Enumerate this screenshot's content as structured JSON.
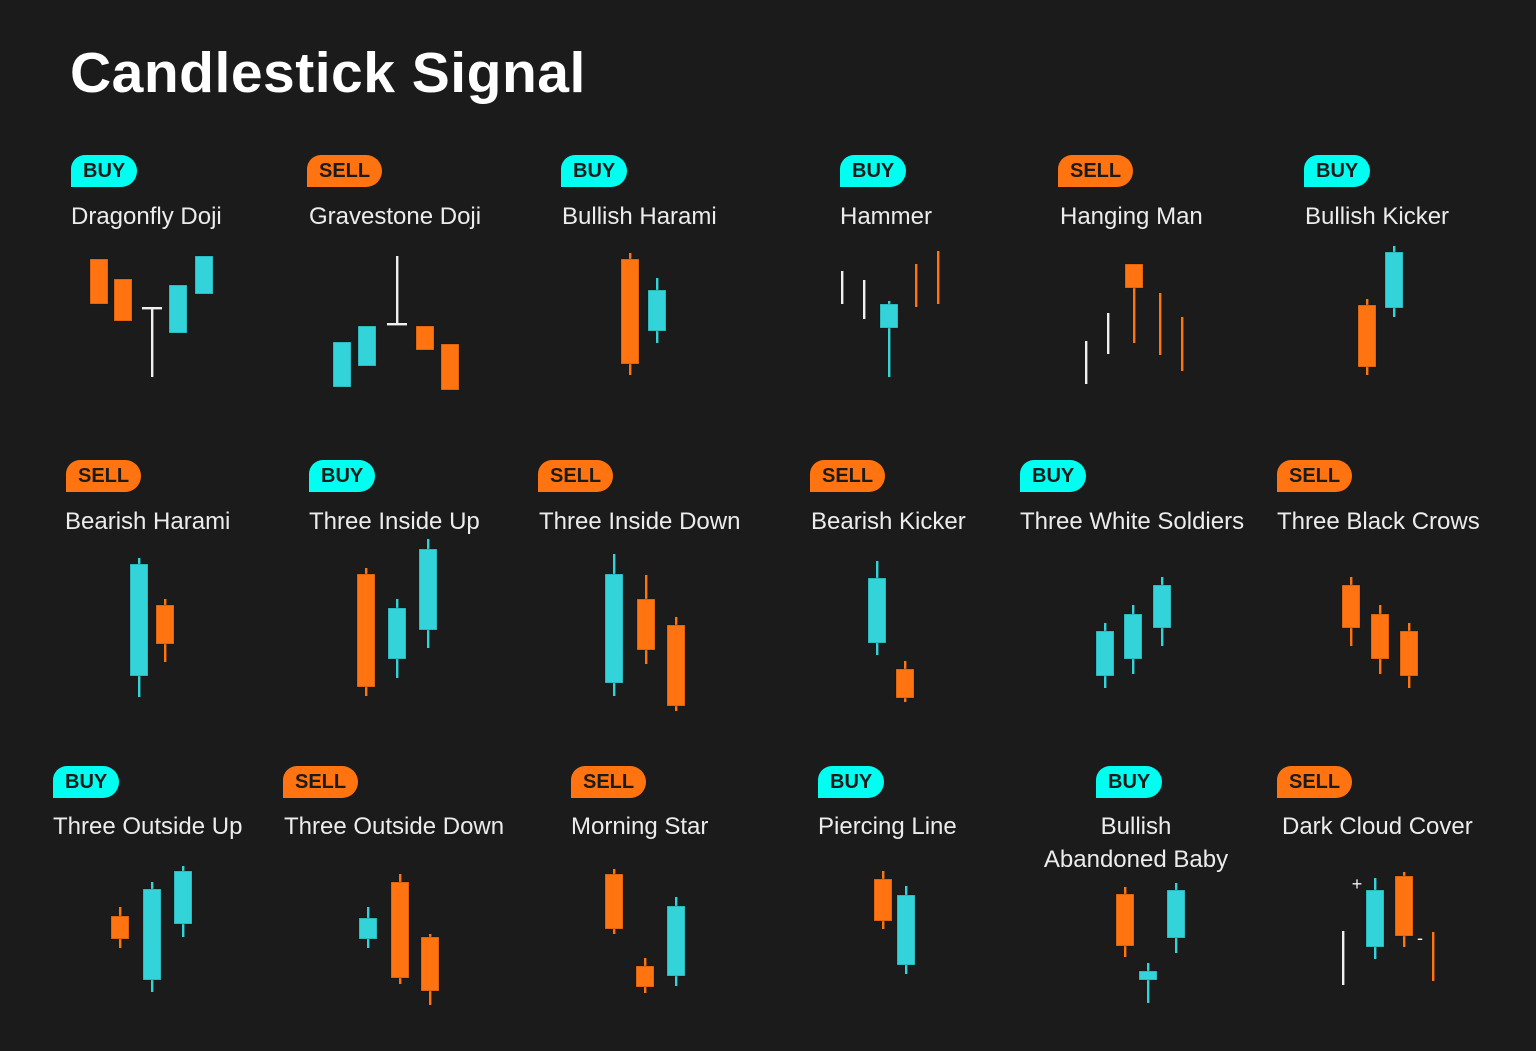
{
  "title": "Candlestick Signal",
  "colors": {
    "background": "#1b1b1b",
    "buy": "#00fff0",
    "sell": "#ff7410",
    "bull_candle": "#33d4d9",
    "bear_candle": "#ff7410",
    "neutral": "#f0f0f0"
  },
  "patterns": [
    {
      "signal": "BUY",
      "name": "Dragonfly Doji"
    },
    {
      "signal": "SELL",
      "name": "Gravestone Doji"
    },
    {
      "signal": "BUY",
      "name": "Bullish Harami"
    },
    {
      "signal": "BUY",
      "name": "Hammer"
    },
    {
      "signal": "SELL",
      "name": "Hanging Man"
    },
    {
      "signal": "BUY",
      "name": "Bullish Kicker"
    },
    {
      "signal": "SELL",
      "name": "Bearish Harami"
    },
    {
      "signal": "BUY",
      "name": "Three Inside Up"
    },
    {
      "signal": "SELL",
      "name": "Three Inside Down"
    },
    {
      "signal": "SELL",
      "name": "Bearish Kicker"
    },
    {
      "signal": "BUY",
      "name": "Three White Soldiers"
    },
    {
      "signal": "SELL",
      "name": "Three Black Crows"
    },
    {
      "signal": "BUY",
      "name": "Three Outside Up"
    },
    {
      "signal": "SELL",
      "name": "Three Outside Down"
    },
    {
      "signal": "SELL",
      "name": "Morning Star"
    },
    {
      "signal": "BUY",
      "name": "Piercing Line"
    },
    {
      "signal": "BUY",
      "name": "Bullish Abandoned Baby",
      "name_lines": [
        "Bullish",
        "Abandoned Baby"
      ]
    },
    {
      "signal": "SELL",
      "name": "Dark Cloud Cover"
    }
  ],
  "annotations": {
    "plus": "+",
    "minus": "-"
  }
}
